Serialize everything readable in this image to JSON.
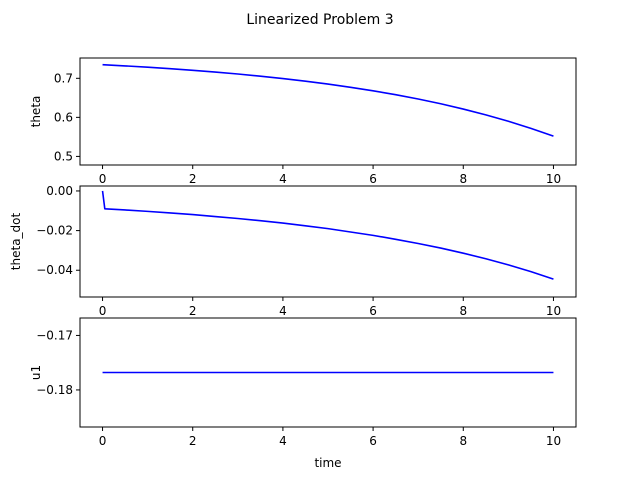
{
  "figure": {
    "title": "Linearized Problem 3"
  },
  "chart_data": [
    {
      "type": "line",
      "title": "",
      "xlabel": "",
      "ylabel": "theta",
      "xlim": [
        -0.5,
        10.5
      ],
      "ylim": [
        0.478,
        0.752
      ],
      "x_ticks": [
        0,
        2,
        4,
        6,
        8,
        10
      ],
      "y_ticks": [
        0.5,
        0.6,
        0.7
      ],
      "grid": false,
      "series": [
        {
          "color": "#0000ff",
          "x": [
            0,
            0.5,
            1,
            1.5,
            2,
            2.5,
            3,
            3.5,
            4,
            4.5,
            5,
            5.5,
            6,
            6.5,
            7,
            7.5,
            8,
            8.5,
            9,
            9.5,
            10
          ],
          "y": [
            0.735,
            0.7318,
            0.7284,
            0.7246,
            0.7205,
            0.716,
            0.711,
            0.7055,
            0.6994,
            0.6927,
            0.6852,
            0.677,
            0.668,
            0.658,
            0.647,
            0.6348,
            0.6213,
            0.6064,
            0.59,
            0.5718,
            0.5518
          ]
        }
      ]
    },
    {
      "type": "line",
      "title": "",
      "xlabel": "",
      "ylabel": "theta_dot",
      "xlim": [
        -0.5,
        10.5
      ],
      "ylim": [
        -0.0535,
        0.0025
      ],
      "x_ticks": [
        0,
        2,
        4,
        6,
        8,
        10
      ],
      "y_ticks": [
        -0.04,
        -0.02,
        0.0
      ],
      "y_tick_labels": [
        "−0.04",
        "−0.02",
        "0.00"
      ],
      "grid": false,
      "series": [
        {
          "color": "#0000ff",
          "x": [
            0,
            0.05,
            0.5,
            1,
            1.5,
            2,
            2.5,
            3,
            3.5,
            4,
            4.5,
            5,
            5.5,
            6,
            6.5,
            7,
            7.5,
            8,
            8.5,
            9,
            9.5,
            10
          ],
          "y": [
            0.0,
            -0.009,
            -0.0096,
            -0.0103,
            -0.0111,
            -0.0119,
            -0.0129,
            -0.0139,
            -0.015,
            -0.0162,
            -0.0176,
            -0.019,
            -0.0207,
            -0.0224,
            -0.0244,
            -0.0265,
            -0.0288,
            -0.0314,
            -0.0342,
            -0.0373,
            -0.0407,
            -0.0445
          ]
        }
      ]
    },
    {
      "type": "line",
      "title": "",
      "xlabel": "time",
      "ylabel": "u1",
      "xlim": [
        -0.5,
        10.5
      ],
      "ylim": [
        -0.1868,
        -0.1668
      ],
      "x_ticks": [
        0,
        2,
        4,
        6,
        8,
        10
      ],
      "y_ticks": [
        -0.18,
        -0.17
      ],
      "y_tick_labels": [
        "−0.18",
        "−0.17"
      ],
      "grid": false,
      "series": [
        {
          "color": "#0000ff",
          "x": [
            0,
            10
          ],
          "y": [
            -0.1768,
            -0.1768
          ]
        }
      ]
    }
  ]
}
